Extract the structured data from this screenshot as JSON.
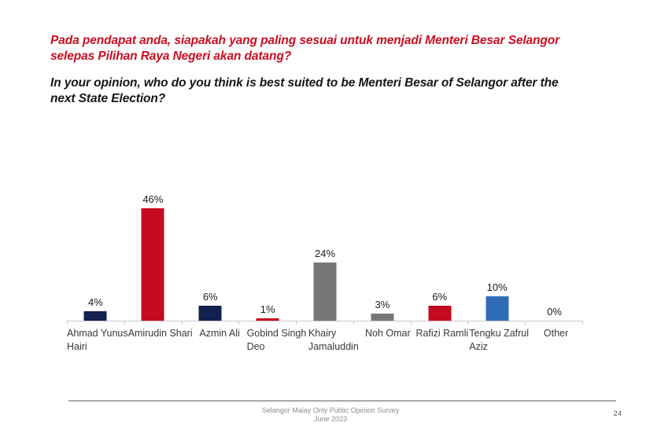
{
  "slide": {
    "title_my": {
      "line1": "Pada pendapat anda, siapakah yang paling sesuai untuk menjadi Menteri Besar Selangor",
      "line2": "selepas Pilihan Raya Negeri akan datang?"
    },
    "title_en": {
      "line1": "In your opinion, who do you think is best suited to be Menteri Besar of Selangor after the",
      "line2": "next State Election?"
    },
    "footer": {
      "line1": "Selangor Malay Only Public Opinion Survey",
      "line2": "June 2023",
      "page_number": "24"
    }
  },
  "colors": {
    "title_red": "#CB0E20",
    "navy": "#12214F",
    "red": "#C40A1E",
    "gray": "#767676",
    "blue": "#2E6DB5",
    "axis": "#C9C9C9"
  },
  "chart_data": {
    "type": "bar",
    "title": "",
    "xlabel": "",
    "ylabel": "",
    "unit": "%",
    "ylim": [
      0,
      50
    ],
    "grid": false,
    "legend": false,
    "categories": [
      "Ahmad Yunus Hairi",
      "Amirudin Shari",
      "Azmin Ali",
      "Gobind Singh Deo",
      "Khairy Jamaluddin",
      "Noh Omar",
      "Rafizi Ramli",
      "Tengku Zafrul Aziz",
      "Other"
    ],
    "category_label_lines": [
      [
        "Ahmad Yunus",
        "Hairi"
      ],
      [
        "Amirudin Shari"
      ],
      [
        "Azmin Ali"
      ],
      [
        "Gobind Singh",
        "Deo"
      ],
      [
        "Khairy",
        "Jamaluddin"
      ],
      [
        "Noh Omar"
      ],
      [
        "Rafizi Ramli"
      ],
      [
        "Tengku Zafrul",
        "Aziz"
      ],
      [
        "Other"
      ]
    ],
    "values": [
      4,
      46,
      6,
      1,
      24,
      3,
      6,
      10,
      0
    ],
    "value_labels": [
      "4%",
      "46%",
      "6%",
      "1%",
      "24%",
      "3%",
      "6%",
      "10%",
      "0%"
    ],
    "bar_colors": [
      "#12214F",
      "#C40A1E",
      "#12214F",
      "#C40A1E",
      "#767676",
      "#767676",
      "#C40A1E",
      "#2E6DB5",
      "#767676"
    ]
  }
}
